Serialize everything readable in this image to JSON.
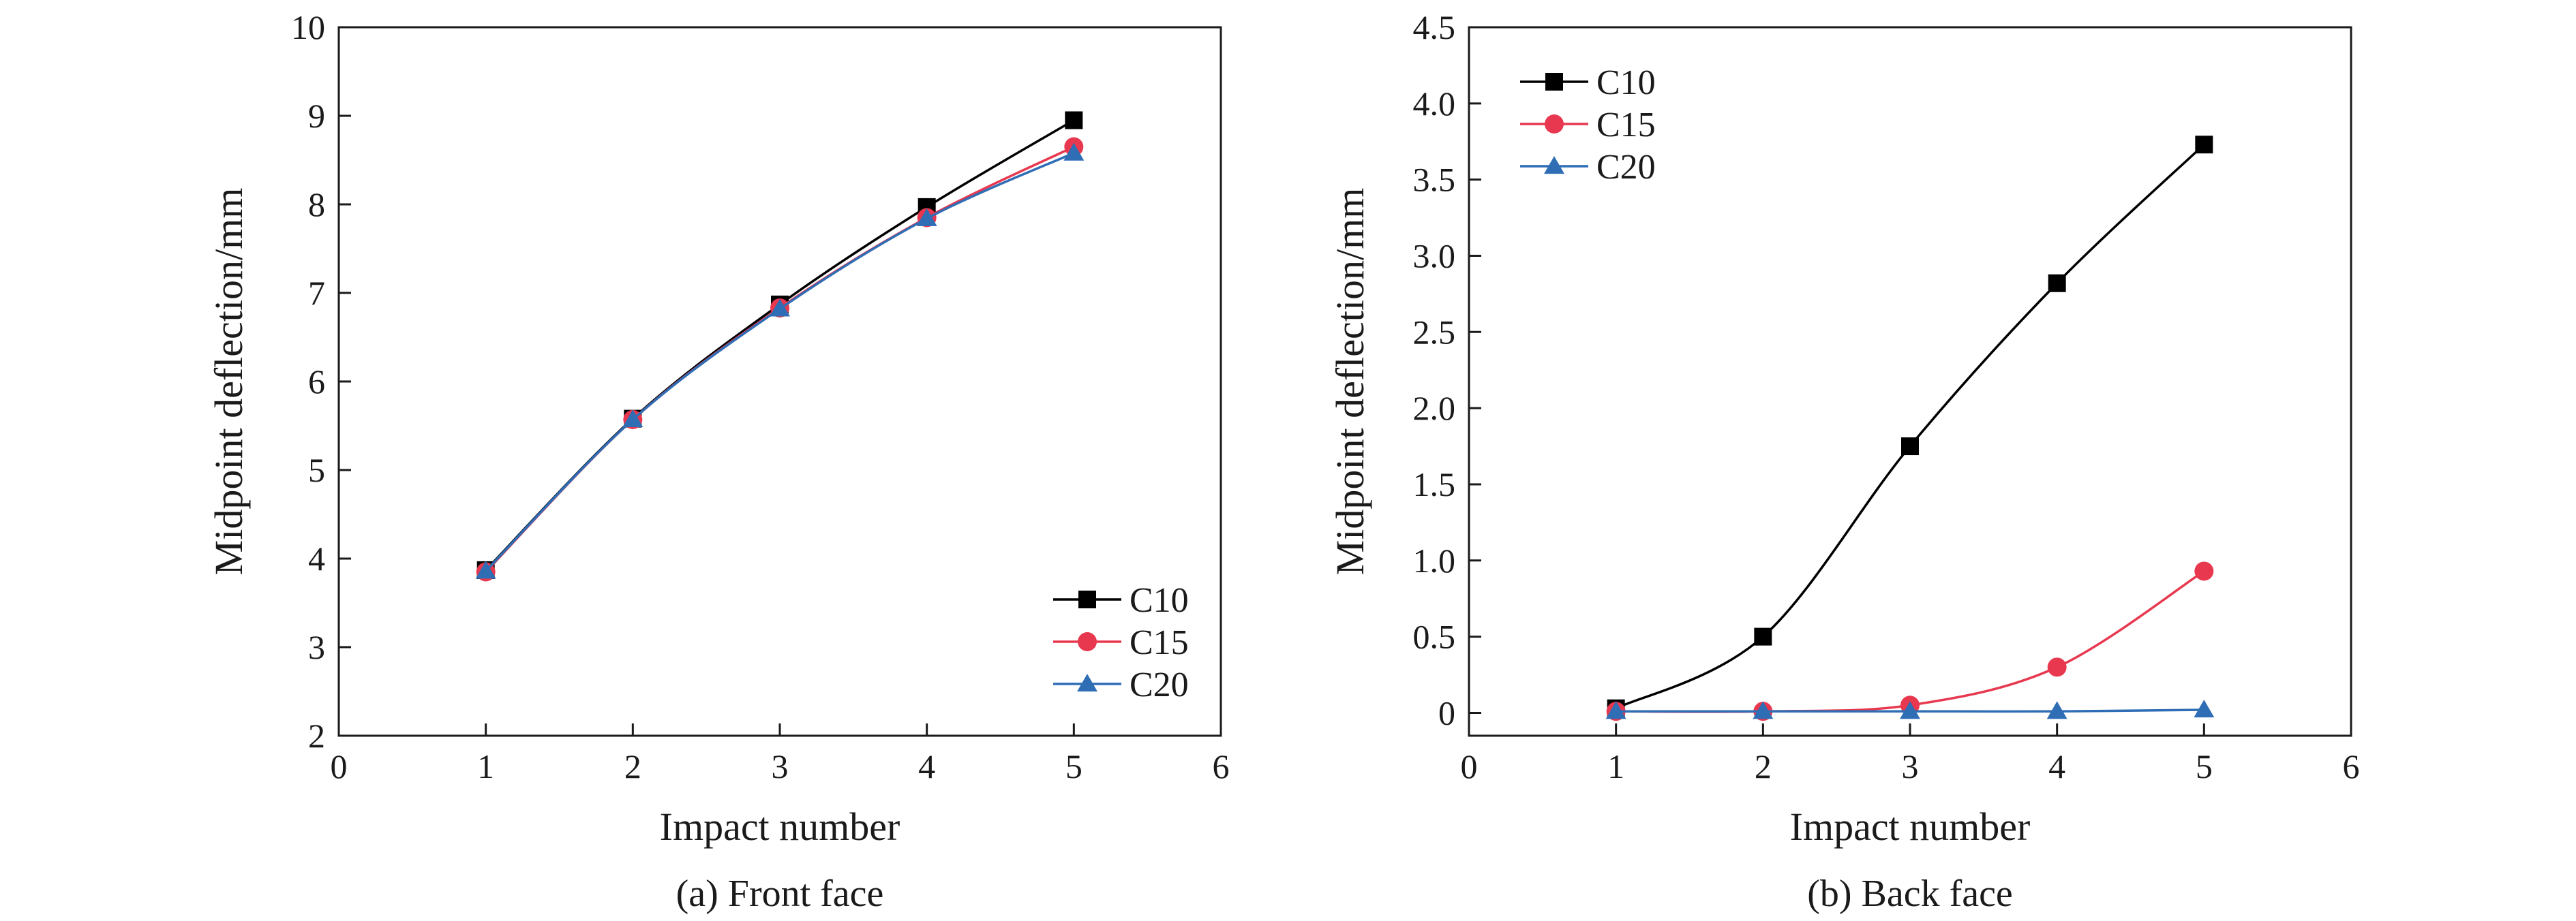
{
  "chart_data": [
    {
      "type": "line",
      "caption": "(a) Front face",
      "xlabel": "Impact number",
      "ylabel": "Midpoint deflection/mm",
      "xlim": [
        0,
        6
      ],
      "ylim": [
        2,
        10
      ],
      "xticks": [
        "0",
        "1",
        "2",
        "3",
        "4",
        "5",
        "6"
      ],
      "yticks": [
        "2",
        "3",
        "4",
        "5",
        "6",
        "7",
        "8",
        "9",
        "10"
      ],
      "x": [
        1,
        2,
        3,
        4,
        5
      ],
      "legend_position": "bottom-right",
      "series": [
        {
          "name": "C10",
          "marker": "square",
          "color": "#000000",
          "values": [
            3.87,
            5.58,
            6.87,
            7.97,
            8.95
          ]
        },
        {
          "name": "C15",
          "marker": "circle",
          "color": "#e8384f",
          "values": [
            3.85,
            5.57,
            6.83,
            7.85,
            8.65
          ]
        },
        {
          "name": "C20",
          "marker": "triangle",
          "color": "#2f6db5",
          "values": [
            3.86,
            5.57,
            6.82,
            7.84,
            8.58
          ]
        }
      ]
    },
    {
      "type": "line",
      "caption": "(b) Back face",
      "xlabel": "Impact number",
      "ylabel": "Midpoint deflection/mm",
      "xlim": [
        0,
        6
      ],
      "ylim": [
        -0.15,
        4.5
      ],
      "xticks": [
        "0",
        "1",
        "2",
        "3",
        "4",
        "5",
        "6"
      ],
      "yticks": [
        "0",
        "0.5",
        "1.0",
        "1.5",
        "2.0",
        "2.5",
        "3.0",
        "3.5",
        "4.0",
        "4.5"
      ],
      "x": [
        1,
        2,
        3,
        4,
        5
      ],
      "legend_position": "top-left",
      "series": [
        {
          "name": "C10",
          "marker": "square",
          "color": "#000000",
          "values": [
            0.03,
            0.5,
            1.75,
            2.82,
            3.73
          ]
        },
        {
          "name": "C15",
          "marker": "circle",
          "color": "#e8384f",
          "values": [
            0.01,
            0.01,
            0.05,
            0.3,
            0.93
          ]
        },
        {
          "name": "C20",
          "marker": "triangle",
          "color": "#2f6db5",
          "values": [
            0.01,
            0.01,
            0.01,
            0.01,
            0.02
          ]
        }
      ]
    }
  ]
}
